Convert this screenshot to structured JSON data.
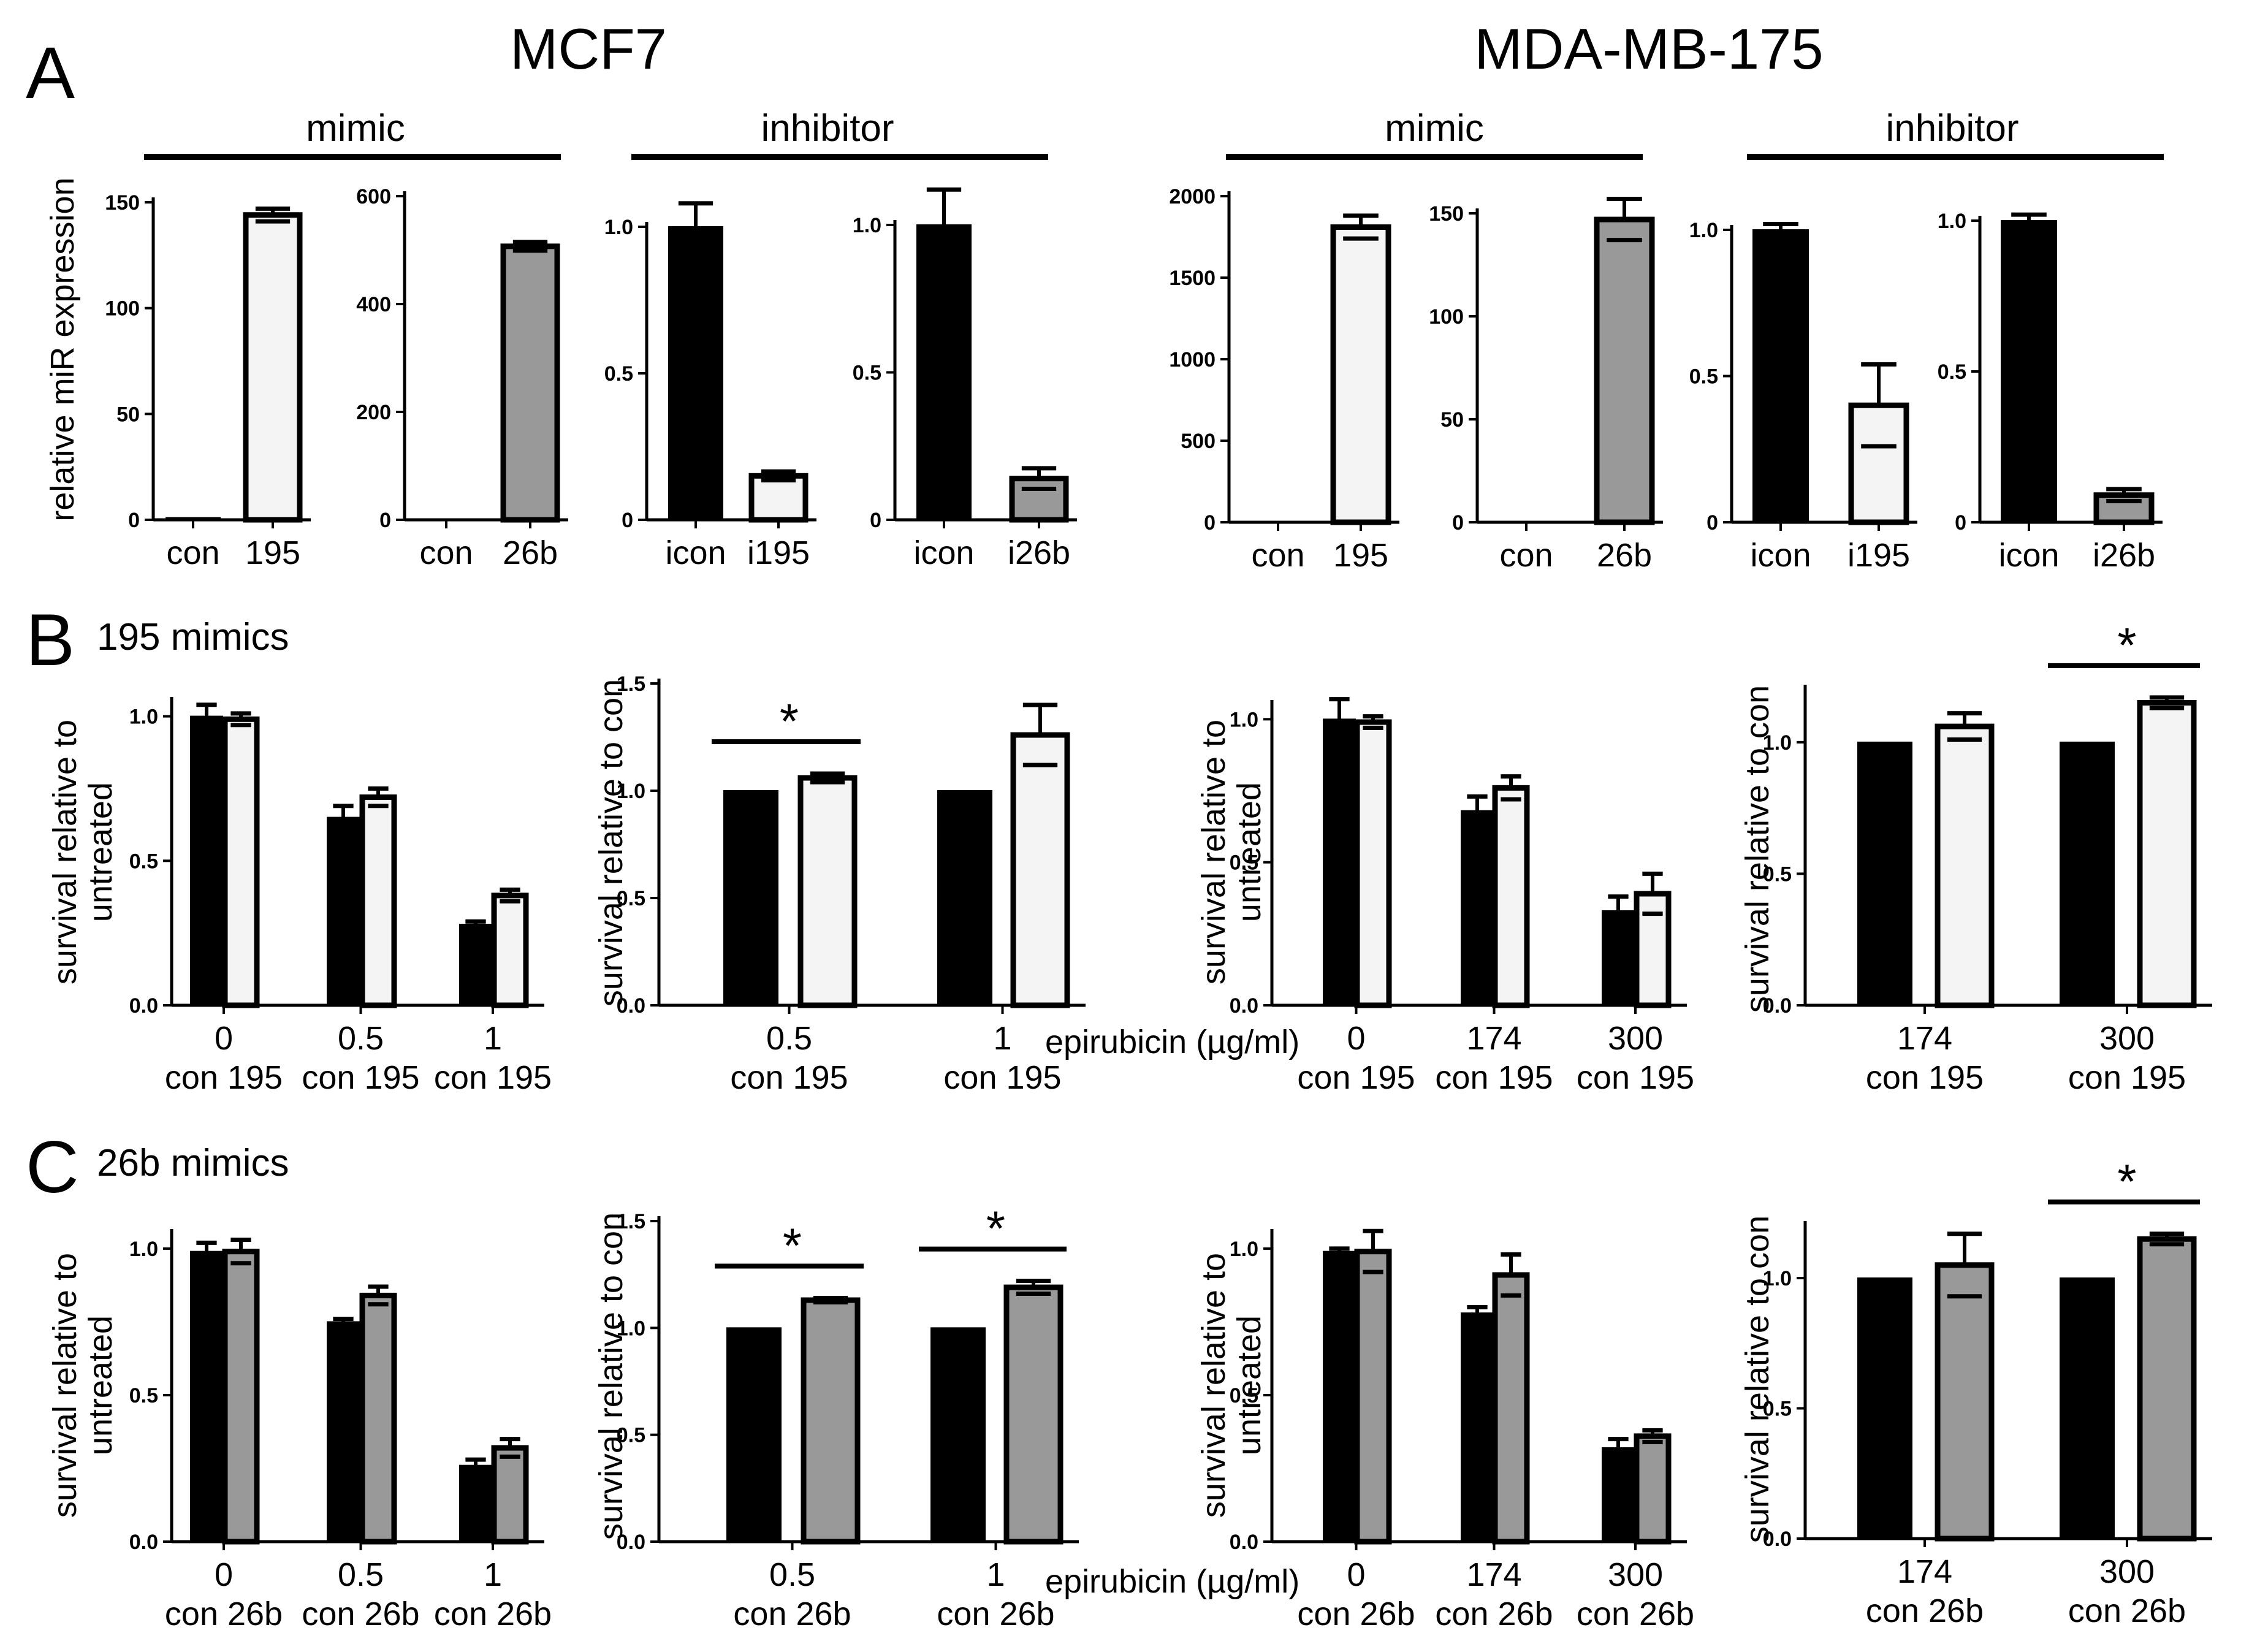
{
  "colors": {
    "con": "#000000",
    "mir195": "#f4f4f4",
    "mir26b": "#999999",
    "stroke": "#000000"
  },
  "header": {
    "panel_a": "A",
    "panel_b": "B",
    "panel_c": "C",
    "mcf7": "MCF7",
    "mdamb175": "MDA-MB-175",
    "mimic": "mimic",
    "inhibitor": "inhibitor",
    "b_title": "195 mimics",
    "c_title": "26b mimics",
    "epirubicin_unit": "epirubicin (µg/ml)",
    "ylabel_expr": "relative miR expression",
    "ylabel_untreated_1": "survival relative to",
    "ylabel_untreated_2": "untreated",
    "ylabel_con": "survival relative to con"
  },
  "chart_data": [
    {
      "id": "A1",
      "type": "bar",
      "cell_line": "MCF7",
      "group": "mimic",
      "categories": [
        "con",
        "195"
      ],
      "values": [
        1,
        144
      ],
      "errors": [
        0,
        3
      ],
      "fills": [
        "con",
        "mir195"
      ],
      "yticks": [
        "0",
        "50",
        "100",
        "150"
      ],
      "ylim": [
        0,
        150
      ],
      "ylabel": "relative miR expression"
    },
    {
      "id": "A2",
      "type": "bar",
      "cell_line": "MCF7",
      "group": "mimic",
      "categories": [
        "con",
        "26b"
      ],
      "values": [
        1,
        507
      ],
      "errors": [
        0,
        8
      ],
      "fills": [
        "con",
        "mir26b"
      ],
      "yticks": [
        "0",
        "200",
        "400",
        "600"
      ],
      "ylim": [
        0,
        600
      ]
    },
    {
      "id": "A3",
      "type": "bar",
      "cell_line": "MCF7",
      "group": "inhibitor",
      "categories": [
        "icon",
        "i195"
      ],
      "values": [
        1.0,
        0.15
      ],
      "errors": [
        0.08,
        0.015
      ],
      "fills": [
        "con",
        "mir195"
      ],
      "yticks": [
        "0",
        "0.5",
        "1.0"
      ],
      "ylim": [
        0,
        1.0
      ]
    },
    {
      "id": "A4",
      "type": "bar",
      "cell_line": "MCF7",
      "group": "inhibitor",
      "categories": [
        "icon",
        "i26b"
      ],
      "values": [
        1.0,
        0.14
      ],
      "errors": [
        0.12,
        0.035
      ],
      "fills": [
        "con",
        "mir26b"
      ],
      "yticks": [
        "0",
        "0.5",
        "1.0"
      ],
      "ylim": [
        0,
        1.0
      ]
    },
    {
      "id": "A5",
      "type": "bar",
      "cell_line": "MDA-MB-175",
      "group": "mimic",
      "categories": [
        "con",
        "195"
      ],
      "values": [
        0,
        1810
      ],
      "errors": [
        0,
        70
      ],
      "fills": [
        "con",
        "mir195"
      ],
      "yticks": [
        "0",
        "500",
        "1000",
        "1500",
        "2000"
      ],
      "ylim": [
        0,
        2000
      ]
    },
    {
      "id": "A6",
      "type": "bar",
      "cell_line": "MDA-MB-175",
      "group": "mimic",
      "categories": [
        "con",
        "26b"
      ],
      "values": [
        0,
        147
      ],
      "errors": [
        0,
        10
      ],
      "fills": [
        "con",
        "mir26b"
      ],
      "yticks": [
        "0",
        "50",
        "100",
        "150"
      ],
      "ylim": [
        0,
        150
      ]
    },
    {
      "id": "A7",
      "type": "bar",
      "cell_line": "MDA-MB-175",
      "group": "inhibitor",
      "categories": [
        "icon",
        "i195"
      ],
      "values": [
        1.0,
        0.4
      ],
      "errors": [
        0.02,
        0.14
      ],
      "fills": [
        "con",
        "mir195"
      ],
      "yticks": [
        "0",
        "0.5",
        "1.0"
      ],
      "ylim": [
        0,
        1.0
      ]
    },
    {
      "id": "A8",
      "type": "bar",
      "cell_line": "MDA-MB-175",
      "group": "inhibitor",
      "categories": [
        "icon",
        "i26b"
      ],
      "values": [
        1.0,
        0.09
      ],
      "errors": [
        0.02,
        0.02
      ],
      "fills": [
        "con",
        "mir26b"
      ],
      "yticks": [
        "0",
        "0.5",
        "1.0"
      ],
      "ylim": [
        0,
        1.0
      ]
    },
    {
      "id": "B1",
      "type": "bar",
      "cell_line": "MCF7",
      "ylabel": [
        "survival relative to",
        "untreated"
      ],
      "doses": [
        "0",
        "0.5",
        "1"
      ],
      "pair_labels": [
        "con 195",
        "con 195",
        "con 195"
      ],
      "values": [
        [
          1.0,
          0.99
        ],
        [
          0.65,
          0.72
        ],
        [
          0.28,
          0.38
        ]
      ],
      "errors": [
        [
          0.04,
          0.02
        ],
        [
          0.04,
          0.03
        ],
        [
          0.01,
          0.02
        ]
      ],
      "fills": [
        "con",
        "mir195"
      ],
      "yticks": [
        "0.0",
        "0.5",
        "1.0"
      ],
      "ylim": [
        0,
        1.05
      ]
    },
    {
      "id": "B2",
      "type": "bar",
      "cell_line": "MCF7",
      "ylabel": [
        "survival relative to con"
      ],
      "doses": [
        "0.5",
        "1"
      ],
      "pair_labels": [
        "con 195",
        "con   195"
      ],
      "values": [
        [
          1.0,
          1.06
        ],
        [
          1.0,
          1.26
        ]
      ],
      "errors": [
        [
          0,
          0.02
        ],
        [
          0,
          0.14
        ]
      ],
      "fills": [
        "con",
        "mir195"
      ],
      "yticks": [
        "0.0",
        "0.5",
        "1.0",
        "1.5"
      ],
      "ylim": [
        0,
        1.5
      ],
      "significance": [
        "*",
        ""
      ],
      "unit_label": "epirubicin (µg/ml)"
    },
    {
      "id": "B3",
      "type": "bar",
      "cell_line": "MDA-MB-175",
      "ylabel": [
        "survival relative to",
        "untreated"
      ],
      "doses": [
        "0",
        "174",
        "300"
      ],
      "pair_labels": [
        "con 195",
        "con 195",
        "con 195"
      ],
      "values": [
        [
          1.0,
          0.99
        ],
        [
          0.68,
          0.76
        ],
        [
          0.33,
          0.39
        ]
      ],
      "errors": [
        [
          0.07,
          0.02
        ],
        [
          0.05,
          0.04
        ],
        [
          0.05,
          0.07
        ]
      ],
      "fills": [
        "con",
        "mir195"
      ],
      "yticks": [
        "0.0",
        "0.5",
        "1.0"
      ],
      "ylim": [
        0,
        1.05
      ]
    },
    {
      "id": "B4",
      "type": "bar",
      "cell_line": "MDA-MB-175",
      "ylabel": [
        "survival relative to con"
      ],
      "doses": [
        "174",
        "300"
      ],
      "pair_labels": [
        "con  195",
        "con  195"
      ],
      "values": [
        [
          1.0,
          1.06
        ],
        [
          1.0,
          1.15
        ]
      ],
      "errors": [
        [
          0,
          0.05
        ],
        [
          0,
          0.02
        ]
      ],
      "fills": [
        "con",
        "mir195"
      ],
      "yticks": [
        "0.0",
        "0.5",
        "1.0"
      ],
      "ylim": [
        0,
        1.2
      ],
      "significance": [
        "",
        "*"
      ]
    },
    {
      "id": "C1",
      "type": "bar",
      "cell_line": "MCF7",
      "ylabel": [
        "survival relative to",
        "untreated"
      ],
      "doses": [
        "0",
        "0.5",
        "1"
      ],
      "pair_labels": [
        "con 26b",
        "con 26b",
        "con 26b"
      ],
      "values": [
        [
          0.99,
          0.99
        ],
        [
          0.75,
          0.84
        ],
        [
          0.26,
          0.32
        ]
      ],
      "errors": [
        [
          0.03,
          0.04
        ],
        [
          0.01,
          0.03
        ],
        [
          0.02,
          0.03
        ]
      ],
      "fills": [
        "con",
        "mir26b"
      ],
      "yticks": [
        "0.0",
        "0.5",
        "1.0"
      ],
      "ylim": [
        0,
        1.05
      ]
    },
    {
      "id": "C2",
      "type": "bar",
      "cell_line": "MCF7",
      "ylabel": [
        "survival relative to con"
      ],
      "doses": [
        "0.5",
        "1"
      ],
      "pair_labels": [
        "con 26b",
        "con  26b"
      ],
      "values": [
        [
          1.0,
          1.13
        ],
        [
          1.0,
          1.19
        ]
      ],
      "errors": [
        [
          0,
          0.01
        ],
        [
          0,
          0.03
        ]
      ],
      "fills": [
        "con",
        "mir26b"
      ],
      "yticks": [
        "0.0",
        "0.5",
        "1.0",
        "1.5"
      ],
      "ylim": [
        0,
        1.5
      ],
      "significance": [
        "*",
        "*"
      ],
      "unit_label": "epirubicin (µg/ml)"
    },
    {
      "id": "C3",
      "type": "bar",
      "cell_line": "MDA-MB-175",
      "ylabel": [
        "survival relative to",
        "untreated"
      ],
      "doses": [
        "0",
        "174",
        "300"
      ],
      "pair_labels": [
        "con 26b",
        "con 26b",
        "con 26b"
      ],
      "values": [
        [
          0.99,
          0.99
        ],
        [
          0.78,
          0.91
        ],
        [
          0.32,
          0.36
        ]
      ],
      "errors": [
        [
          0.01,
          0.07
        ],
        [
          0.02,
          0.07
        ],
        [
          0.03,
          0.02
        ]
      ],
      "fills": [
        "con",
        "mir26b"
      ],
      "yticks": [
        "0.0",
        "0.5",
        "1.0"
      ],
      "ylim": [
        0,
        1.05
      ]
    },
    {
      "id": "C4",
      "type": "bar",
      "cell_line": "MDA-MB-175",
      "ylabel": [
        "survival relative to con"
      ],
      "doses": [
        "174",
        "300"
      ],
      "pair_labels": [
        "con  26b",
        "con  26b"
      ],
      "values": [
        [
          1.0,
          1.05
        ],
        [
          1.0,
          1.15
        ]
      ],
      "errors": [
        [
          0,
          0.12
        ],
        [
          0,
          0.02
        ]
      ],
      "fills": [
        "con",
        "mir26b"
      ],
      "yticks": [
        "0.0",
        "0.5",
        "1.0"
      ],
      "ylim": [
        0,
        1.2
      ],
      "significance": [
        "",
        "*"
      ]
    }
  ]
}
